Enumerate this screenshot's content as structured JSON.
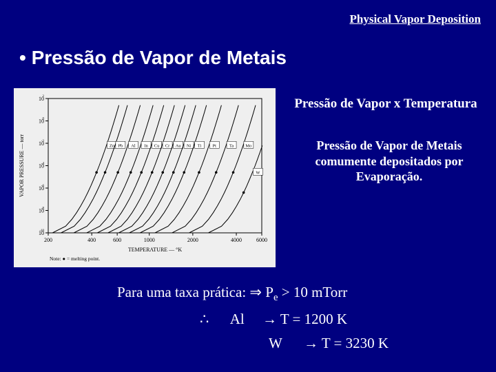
{
  "header": {
    "title": "Physical Vapor Deposition"
  },
  "bullet_title": "•  Pressão de Vapor de Metais",
  "side": {
    "title1": "Pressão de Vapor x Temperatura",
    "title2_l1": "Pressão de Vapor de Metais",
    "title2_l2": "comumente depositados por",
    "title2_l3": "Evaporação."
  },
  "formula": {
    "line1_a": "Para uma taxa prática: ",
    "line1_b": " P",
    "line1_sub": "e",
    "line1_c": "  >  10 mTorr",
    "line2_a": "∴",
    "line2_b": "Al",
    "line2_c": "→ T = 1200 K",
    "line3_a": "W",
    "line3_b": "→ T = 3230 K"
  },
  "chart": {
    "type": "line",
    "background_color": "#efefef",
    "axis_color": "#000000",
    "curve_color": "#000000",
    "xlabel": "TEMPERATURE — °K",
    "ylabel": "VAPOR PRESSURE — torr",
    "note": "Note: ● = melting point.",
    "x_ticks": [
      200,
      400,
      600,
      1000,
      2000,
      4000,
      6000
    ],
    "y_ticks_exp": [
      -10,
      -8,
      -6,
      -4,
      -2,
      0,
      2
    ],
    "labels": [
      "Zn",
      "Pb",
      "Al",
      "In",
      "Cu",
      "Cr",
      "Au",
      "Ni",
      "Ti",
      "Pt",
      "Ta",
      "Mo",
      "W"
    ],
    "curves_x_offset": [
      0.02,
      0.06,
      0.12,
      0.18,
      0.23,
      0.28,
      0.33,
      0.38,
      0.43,
      0.5,
      0.58,
      0.66,
      0.75
    ]
  }
}
